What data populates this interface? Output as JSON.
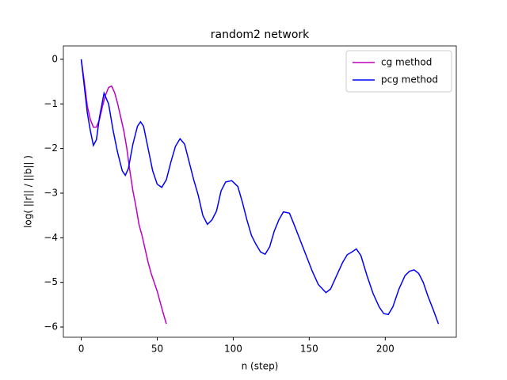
{
  "chart_data": {
    "type": "line",
    "title": "random2 network",
    "x_label": "n (step)",
    "y_label": "log( ||r|| / ||b|| )",
    "xlim": [
      -11.75,
      246.75
    ],
    "ylim": [
      -6.23,
      0.3
    ],
    "xticks": [
      0,
      50,
      100,
      150,
      200
    ],
    "yticks": [
      {
        "value": 0,
        "label": "0"
      },
      {
        "value": -1,
        "label": "−1"
      },
      {
        "value": -2,
        "label": "−2"
      },
      {
        "value": -3,
        "label": "−3"
      },
      {
        "value": -4,
        "label": "−4"
      },
      {
        "value": -5,
        "label": "−5"
      },
      {
        "value": -6,
        "label": "−6"
      }
    ],
    "legend": "upper right",
    "series": [
      {
        "name": "cg method",
        "color": "#bf00bf",
        "x": [
          0,
          2,
          4,
          6,
          8,
          10,
          12,
          14,
          16,
          18,
          20,
          22,
          24,
          26,
          28,
          30,
          32,
          34,
          36,
          38,
          40,
          42,
          44,
          46,
          48,
          50,
          52,
          54,
          56
        ],
        "values": [
          0,
          -0.5,
          -1.05,
          -1.35,
          -1.52,
          -1.52,
          -1.35,
          -1.05,
          -0.8,
          -0.63,
          -0.6,
          -0.75,
          -1.0,
          -1.3,
          -1.6,
          -2.0,
          -2.5,
          -2.95,
          -3.3,
          -3.7,
          -3.95,
          -4.25,
          -4.55,
          -4.8,
          -5.0,
          -5.2,
          -5.45,
          -5.7,
          -5.93
        ]
      },
      {
        "name": "pcg method",
        "color": "#0000ff",
        "x": [
          0,
          2,
          4,
          6,
          8,
          10,
          12,
          15,
          18,
          21,
          24,
          27,
          29,
          31,
          34,
          37,
          39,
          41,
          44,
          47,
          50,
          53,
          56,
          59,
          62,
          65,
          68,
          71,
          74,
          77,
          80,
          83,
          86,
          89,
          92,
          95,
          99,
          103,
          106,
          109,
          112,
          115,
          118,
          121,
          124,
          127,
          130,
          133,
          137,
          140,
          144,
          148,
          152,
          156,
          161,
          164,
          168,
          172,
          175,
          178,
          181,
          184,
          188,
          192,
          196,
          199,
          202,
          205,
          209,
          213,
          216,
          219,
          222,
          225,
          228,
          232,
          235
        ],
        "values": [
          0,
          -0.6,
          -1.2,
          -1.6,
          -1.93,
          -1.8,
          -1.3,
          -0.76,
          -1.0,
          -1.6,
          -2.1,
          -2.5,
          -2.6,
          -2.45,
          -1.9,
          -1.5,
          -1.4,
          -1.5,
          -2.0,
          -2.5,
          -2.8,
          -2.87,
          -2.7,
          -2.3,
          -1.95,
          -1.78,
          -1.9,
          -2.3,
          -2.7,
          -3.05,
          -3.5,
          -3.7,
          -3.6,
          -3.4,
          -2.95,
          -2.75,
          -2.72,
          -2.85,
          -3.2,
          -3.6,
          -3.95,
          -4.15,
          -4.32,
          -4.37,
          -4.2,
          -3.85,
          -3.6,
          -3.42,
          -3.45,
          -3.7,
          -4.05,
          -4.4,
          -4.75,
          -5.05,
          -5.23,
          -5.15,
          -4.85,
          -4.55,
          -4.38,
          -4.32,
          -4.25,
          -4.4,
          -4.85,
          -5.25,
          -5.55,
          -5.7,
          -5.72,
          -5.55,
          -5.15,
          -4.85,
          -4.75,
          -4.72,
          -4.8,
          -5.0,
          -5.3,
          -5.65,
          -5.93
        ]
      }
    ]
  }
}
